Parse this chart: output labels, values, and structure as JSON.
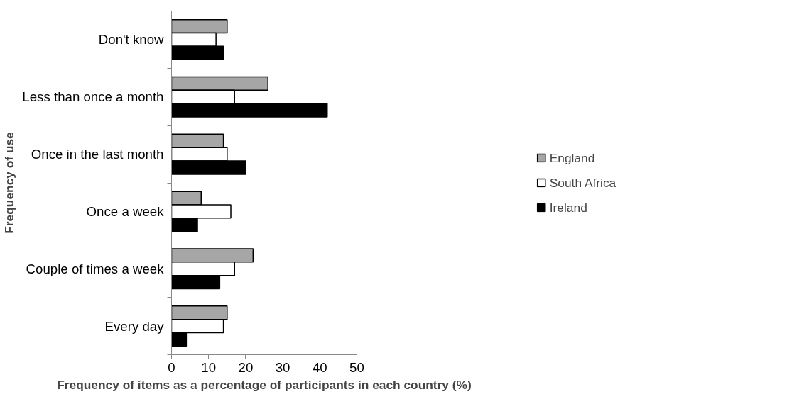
{
  "chart_data": {
    "type": "bar",
    "orientation": "horizontal",
    "xlabel": "Frequency of items as a percentage of participants in each country (%)",
    "ylabel": "Frequency of use",
    "categories": [
      "Don't know",
      "Less than once a month",
      "Once in the last month",
      "Once a week",
      "Couple of times a week",
      "Every day"
    ],
    "series": [
      {
        "name": "England",
        "color": "#a6a6a6",
        "values": [
          15,
          26,
          14,
          8,
          22,
          15
        ]
      },
      {
        "name": "South Africa",
        "color": "#ffffff",
        "values": [
          12,
          17,
          15,
          16,
          17,
          14
        ]
      },
      {
        "name": "Ireland",
        "color": "#000000",
        "values": [
          14,
          42,
          20,
          7,
          13,
          4
        ]
      }
    ],
    "xlim": [
      0,
      50
    ],
    "xticks": [
      0,
      10,
      20,
      30,
      40,
      50
    ],
    "grid": false,
    "legend": "right"
  }
}
